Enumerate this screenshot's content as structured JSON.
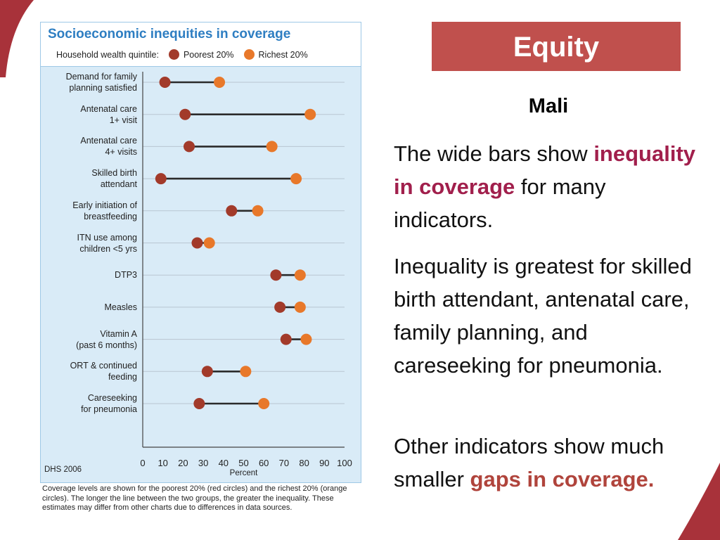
{
  "slide": {
    "banner": "Equity",
    "country": "Mali",
    "para1": {
      "pre": "The wide bars show ",
      "highlight": "inequality in coverage",
      "post": " for many indicators."
    },
    "para2": "Inequality is greatest for skilled birth attendant, antenatal care, family planning, and careseeking for pneumonia.",
    "para3": {
      "pre": " Other indicators show much smaller ",
      "highlight": "gaps in coverage."
    },
    "colors": {
      "banner": "#c0504d",
      "highlight1": "#a11f4c",
      "highlight2": "#b0443c",
      "poorest": "#a23a2a",
      "richest": "#e8782a",
      "title": "#2e7ec2"
    }
  },
  "chart_data": {
    "type": "dumbbell",
    "title": "Socioeconomic inequities in coverage",
    "legend_title": "Household wealth quintile:",
    "xlabel": "Percent",
    "xlim": [
      0,
      100
    ],
    "xticks": [
      0,
      10,
      20,
      30,
      40,
      50,
      60,
      70,
      80,
      90,
      100
    ],
    "source": "DHS 2006",
    "categories": [
      "Demand for family\nplanning satisfied",
      "Antenatal care\n1+ visit",
      "Antenatal care\n4+ visits",
      "Skilled birth\nattendant",
      "Early initiation of\nbreastfeeding",
      "ITN use among\nchildren <5 yrs",
      "DTP3",
      "Measles",
      "Vitamin A\n(past 6 months)",
      "ORT & continued\nfeeding",
      "Careseeking\nfor pneumonia"
    ],
    "series": [
      {
        "name": "Poorest 20%",
        "color": "#a23a2a",
        "values": [
          11,
          21,
          23,
          9,
          44,
          27,
          66,
          68,
          71,
          32,
          28
        ]
      },
      {
        "name": "Richest 20%",
        "color": "#e8782a",
        "values": [
          38,
          83,
          64,
          76,
          57,
          33,
          78,
          78,
          81,
          51,
          60
        ]
      }
    ],
    "caption": "Coverage levels are shown for the poorest 20% (red circles) and the richest 20% (orange circles). The longer the line between the two groups, the greater the inequality. These estimates may differ from other charts due to differences in data sources."
  }
}
